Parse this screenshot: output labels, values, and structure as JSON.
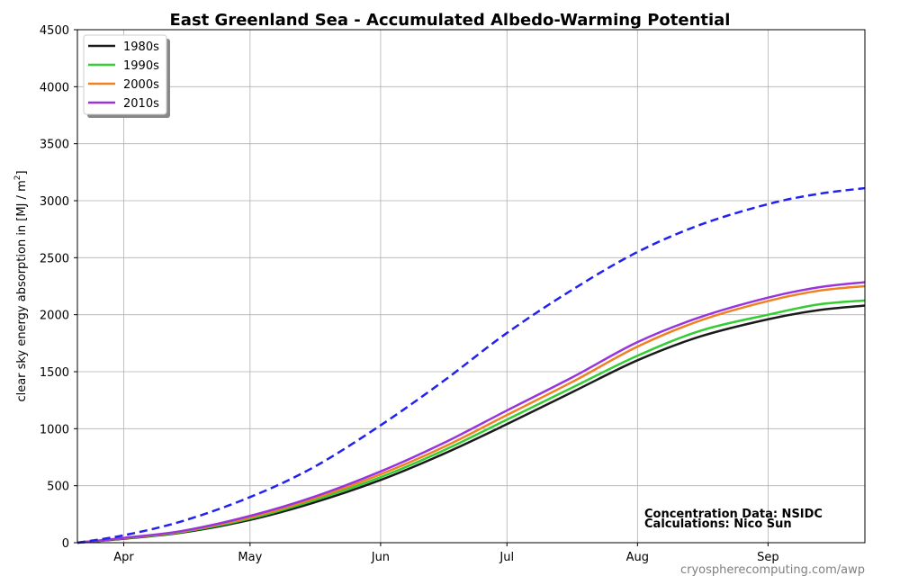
{
  "chart_data": {
    "type": "line",
    "title": "East Greenland Sea - Accumulated Albedo-Warming Potential",
    "ylabel_main": "clear sky energy absorption in  [MJ / m",
    "ylabel_sup": "2",
    "ylabel_close": "]",
    "xlabel": "",
    "day_range": [
      80,
      267
    ],
    "ylim": [
      0,
      4500
    ],
    "yticks": [
      0,
      500,
      1000,
      1500,
      2000,
      2500,
      3000,
      3500,
      4000,
      4500
    ],
    "xticks": [
      {
        "label": "Apr",
        "day": 91
      },
      {
        "label": "May",
        "day": 121
      },
      {
        "label": "Jun",
        "day": 152
      },
      {
        "label": "Jul",
        "day": 182
      },
      {
        "label": "Aug",
        "day": 213
      },
      {
        "label": "Sep",
        "day": 244
      }
    ],
    "grid": true,
    "legend_position": "top-left",
    "series": [
      {
        "name": "1980s",
        "color": "#1a1a1a",
        "dashed": false,
        "x": [
          80,
          91,
          105,
          121,
          136,
          152,
          167,
          182,
          198,
          213,
          228,
          244,
          256,
          267
        ],
        "y": [
          0,
          35,
          90,
          200,
          350,
          550,
          780,
          1040,
          1330,
          1600,
          1810,
          1960,
          2040,
          2080
        ]
      },
      {
        "name": "1990s",
        "color": "#33cc33",
        "dashed": false,
        "x": [
          80,
          91,
          105,
          121,
          136,
          152,
          167,
          182,
          198,
          213,
          228,
          244,
          256,
          267
        ],
        "y": [
          0,
          38,
          95,
          212,
          370,
          575,
          810,
          1080,
          1370,
          1640,
          1860,
          2000,
          2090,
          2125
        ]
      },
      {
        "name": "2000s",
        "color": "#f08020",
        "dashed": false,
        "x": [
          80,
          91,
          105,
          121,
          136,
          152,
          167,
          182,
          198,
          213,
          228,
          244,
          256,
          267
        ],
        "y": [
          0,
          40,
          100,
          222,
          385,
          600,
          840,
          1120,
          1420,
          1720,
          1950,
          2120,
          2210,
          2250
        ]
      },
      {
        "name": "2010s",
        "color": "#9933dd",
        "dashed": false,
        "x": [
          80,
          91,
          105,
          121,
          136,
          152,
          167,
          182,
          198,
          213,
          228,
          244,
          256,
          267
        ],
        "y": [
          0,
          42,
          104,
          235,
          400,
          625,
          875,
          1160,
          1460,
          1760,
          1980,
          2150,
          2240,
          2285
        ]
      },
      {
        "name": "",
        "color": "#2222ee",
        "dashed": true,
        "x": [
          80,
          91,
          105,
          121,
          136,
          152,
          167,
          182,
          198,
          213,
          228,
          244,
          256,
          267
        ],
        "y": [
          0,
          65,
          190,
          400,
          660,
          1030,
          1420,
          1840,
          2230,
          2550,
          2790,
          2970,
          3060,
          3110
        ]
      }
    ],
    "annotations": [
      "Concentration Data: NSIDC",
      "Calculations: Nico Sun"
    ],
    "watermark": "cryospherecomputing.com/awp"
  }
}
